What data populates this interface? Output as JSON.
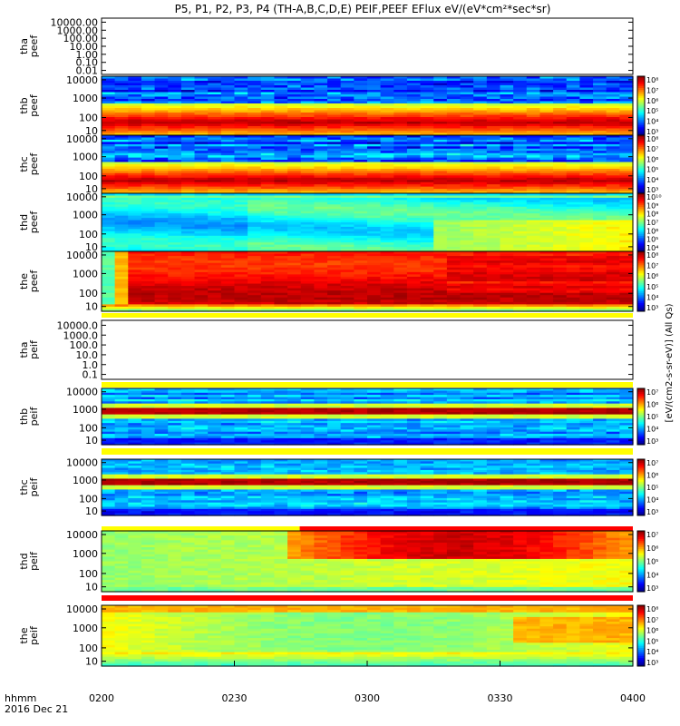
{
  "title": "P5, P1, P2, P3, P4 (TH-A,B,C,D,E) PEIF,PEEF EFlux eV/(eV*cm²*sec*sr)",
  "time_axis": {
    "label_line1": "hhmm",
    "label_line2": "2016 Dec 21",
    "ticks": [
      "0200",
      "0230",
      "0300",
      "0330",
      "0400"
    ]
  },
  "colorbar_label_right": "[eV/(cm2-s-sr-eV)] (All Qs)",
  "chart_data": [
    {
      "type": "heatmap",
      "ylabel": [
        "tha",
        "peef"
      ],
      "yticks": [
        "10000.00",
        "1000.00",
        "100.00",
        "10.00",
        "1.00",
        "0.10",
        "0.01"
      ],
      "yscale": "log",
      "empty": true,
      "cbar_ticks": []
    },
    {
      "type": "heatmap",
      "ylabel": [
        "thb",
        "peef"
      ],
      "yticks": [
        "10000",
        "1000",
        "100",
        "10"
      ],
      "yscale": "log",
      "style": "bands",
      "cbar_ticks": [
        "10⁸",
        "10⁷",
        "10⁶",
        "10⁵",
        "10⁴",
        "10³"
      ]
    },
    {
      "type": "heatmap",
      "ylabel": [
        "thc",
        "peef"
      ],
      "yticks": [
        "10000",
        "1000",
        "100",
        "10"
      ],
      "yscale": "log",
      "style": "bands",
      "cbar_ticks": [
        "10⁸",
        "10⁷",
        "10⁶",
        "10⁵",
        "10⁴",
        "10³"
      ]
    },
    {
      "type": "heatmap",
      "ylabel": [
        "thd",
        "peef"
      ],
      "yticks": [
        "10000",
        "1000",
        "100",
        "10"
      ],
      "yscale": "log",
      "style": "cyan",
      "cbar_ticks": [
        "10¹⁰",
        "10⁹",
        "10⁸",
        "10⁷",
        "10⁶",
        "10⁵",
        "10⁴"
      ]
    },
    {
      "type": "heatmap",
      "ylabel": [
        "the",
        "peef"
      ],
      "yticks": [
        "10000",
        "1000",
        "100",
        "10"
      ],
      "yscale": "log",
      "style": "red",
      "cbar_ticks": [
        "10⁸",
        "10⁷",
        "10⁶",
        "10⁵",
        "10⁴",
        "10³"
      ]
    },
    {
      "type": "heatmap",
      "ylabel": [
        "tha",
        "peif"
      ],
      "yticks": [
        "10000.0",
        "1000.0",
        "100.0",
        "10.0",
        "1.0",
        "0.1"
      ],
      "yscale": "log",
      "empty": true,
      "cbar_ticks": []
    },
    {
      "type": "heatmap",
      "ylabel": [
        "thb",
        "peif"
      ],
      "yticks": [
        "10000",
        "1000",
        "100",
        "10"
      ],
      "yscale": "log",
      "style": "blue",
      "cbar_ticks": [
        "10⁷",
        "10⁶",
        "10⁵",
        "10⁴",
        "10³"
      ]
    },
    {
      "type": "heatmap",
      "ylabel": [
        "thc",
        "peif"
      ],
      "yticks": [
        "10000",
        "1000",
        "100",
        "10"
      ],
      "yscale": "log",
      "style": "blue",
      "cbar_ticks": [
        "10⁷",
        "10⁶",
        "10⁵",
        "10⁴",
        "10³"
      ]
    },
    {
      "type": "heatmap",
      "ylabel": [
        "thd",
        "peif"
      ],
      "yticks": [
        "10000",
        "1000",
        "100",
        "10"
      ],
      "yscale": "log",
      "style": "green",
      "cbar_ticks": [
        "10⁷",
        "10⁶",
        "10⁵",
        "10⁴",
        "10³"
      ]
    },
    {
      "type": "heatmap",
      "ylabel": [
        "the",
        "peif"
      ],
      "yticks": [
        "10000",
        "1000",
        "100",
        "10"
      ],
      "yscale": "log",
      "style": "green2",
      "cbar_ticks": [
        "10⁸",
        "10⁷",
        "10⁶",
        "10⁵",
        "10⁴",
        "10³"
      ]
    }
  ]
}
